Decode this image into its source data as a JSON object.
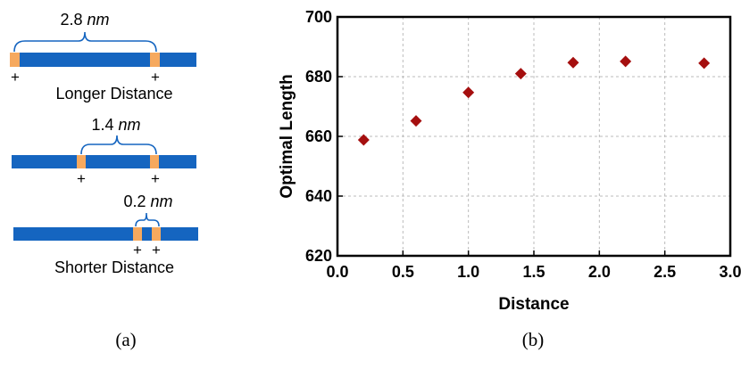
{
  "panel_a": {
    "caption": "(a)",
    "diagrams": [
      {
        "distance_value": "2.8",
        "distance_unit": "nm",
        "plus_signs": [
          "+",
          "+"
        ],
        "label": "Longer Distance"
      },
      {
        "distance_value": "1.4",
        "distance_unit": "nm",
        "plus_signs": [
          "+",
          "+"
        ],
        "label": ""
      },
      {
        "distance_value": "0.2",
        "distance_unit": "nm",
        "plus_signs": [
          "+",
          "+"
        ],
        "label": "Shorter Distance"
      }
    ],
    "colors": {
      "bar": "#1565c0",
      "site": "#f6a95e",
      "bracket": "#1565c0"
    }
  },
  "panel_b": {
    "caption": "(b)"
  },
  "chart_data": {
    "type": "scatter",
    "title": "",
    "xlabel": "Distance",
    "ylabel": "Optimal Length",
    "xlim": [
      0.0,
      3.0
    ],
    "ylim": [
      620,
      700
    ],
    "xticks": [
      0.0,
      0.5,
      1.0,
      1.5,
      2.0,
      2.5,
      3.0
    ],
    "xtick_labels": [
      "0.0",
      "0.5",
      "1.0",
      "1.5",
      "2.0",
      "2.5",
      "3.0"
    ],
    "yticks": [
      620,
      640,
      660,
      680,
      700
    ],
    "ytick_labels": [
      "620",
      "640",
      "660",
      "680",
      "700"
    ],
    "grid": true,
    "marker": "diamond",
    "marker_color": "#a50f0f",
    "series": [
      {
        "x": [
          0.2,
          0.6,
          1.0,
          1.4,
          1.8,
          2.2,
          2.8
        ],
        "y": [
          658.8,
          665.2,
          674.7,
          681.0,
          684.7,
          685.1,
          684.5
        ]
      }
    ]
  }
}
